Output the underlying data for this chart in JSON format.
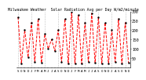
{
  "title": "Milwaukee Weather  Solar Radiation Avg per Day W/m2/minute",
  "line_color": "red",
  "marker_color": "black",
  "line_style": "--",
  "marker": ".",
  "background_color": "#ffffff",
  "grid_color": "#888888",
  "ylim": [
    0,
    300
  ],
  "yticks": [
    50,
    100,
    150,
    200,
    250,
    300
  ],
  "ylabel_fontsize": 3.5,
  "xlabel_fontsize": 3.0,
  "title_fontsize": 3.5,
  "values": [
    270,
    20,
    200,
    55,
    240,
    30,
    260,
    25,
    180,
    100,
    150,
    90,
    200,
    30,
    260,
    20,
    300,
    20,
    280,
    20,
    240,
    30,
    290,
    25,
    270,
    20,
    240,
    20,
    200,
    30,
    260,
    20,
    240,
    25
  ],
  "xlabels": [
    "S",
    "O",
    "N",
    "D",
    "J",
    "F",
    "M",
    "A",
    "M",
    "J",
    "J",
    "A",
    "S",
    "O",
    "N",
    "D",
    "J",
    "F",
    "M",
    "A",
    "M",
    "J",
    "J",
    "A",
    "S",
    "O",
    "N",
    "D",
    "J",
    "A",
    "S",
    "O",
    "N",
    "D"
  ],
  "grid_positions": [
    0,
    4,
    8,
    12,
    16,
    20,
    24,
    28,
    32
  ]
}
